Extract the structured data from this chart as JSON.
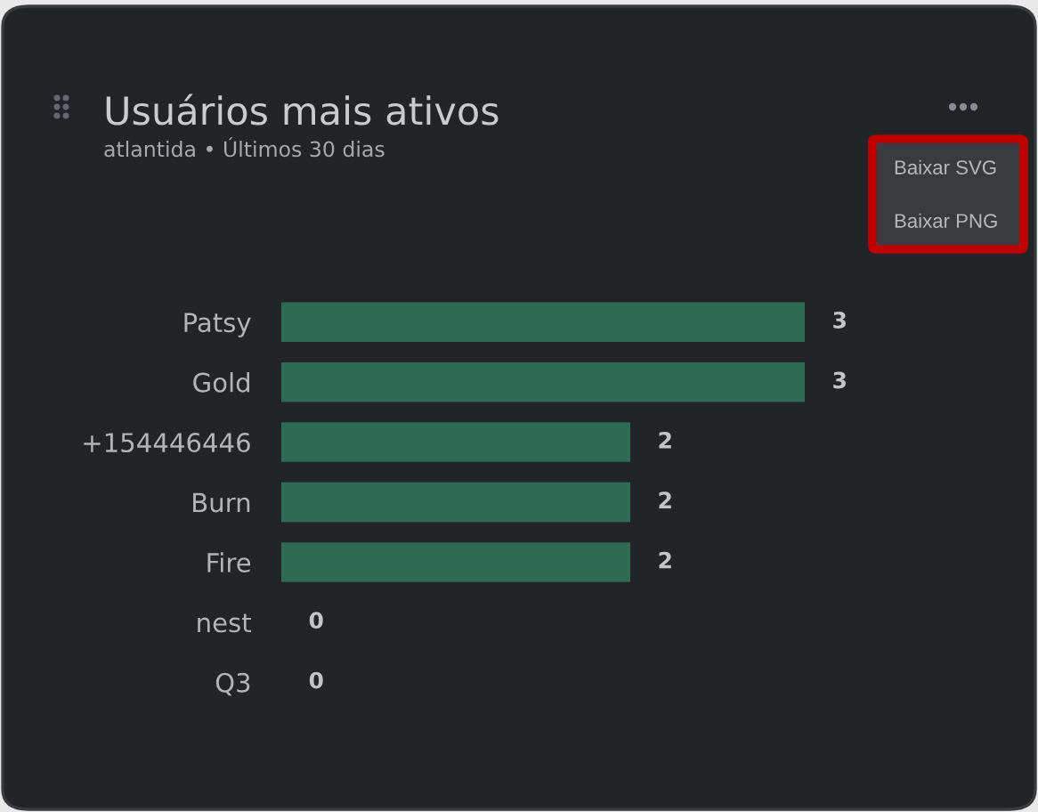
{
  "chart_data": {
    "type": "bar",
    "orientation": "horizontal",
    "title": "Usuários mais ativos",
    "subtitle": "atlantida • Últimos 30 dias",
    "categories": [
      "Patsy",
      "Gold",
      "+154446446",
      "Burn",
      "Fire",
      "nest",
      "Q3"
    ],
    "values": [
      3,
      3,
      2,
      2,
      2,
      0,
      0
    ],
    "color": "#2f6b54",
    "data_labels": true,
    "tick_labels": "y",
    "annotations": [
      "Baixar SVG",
      "Baixar PNG"
    ]
  }
}
